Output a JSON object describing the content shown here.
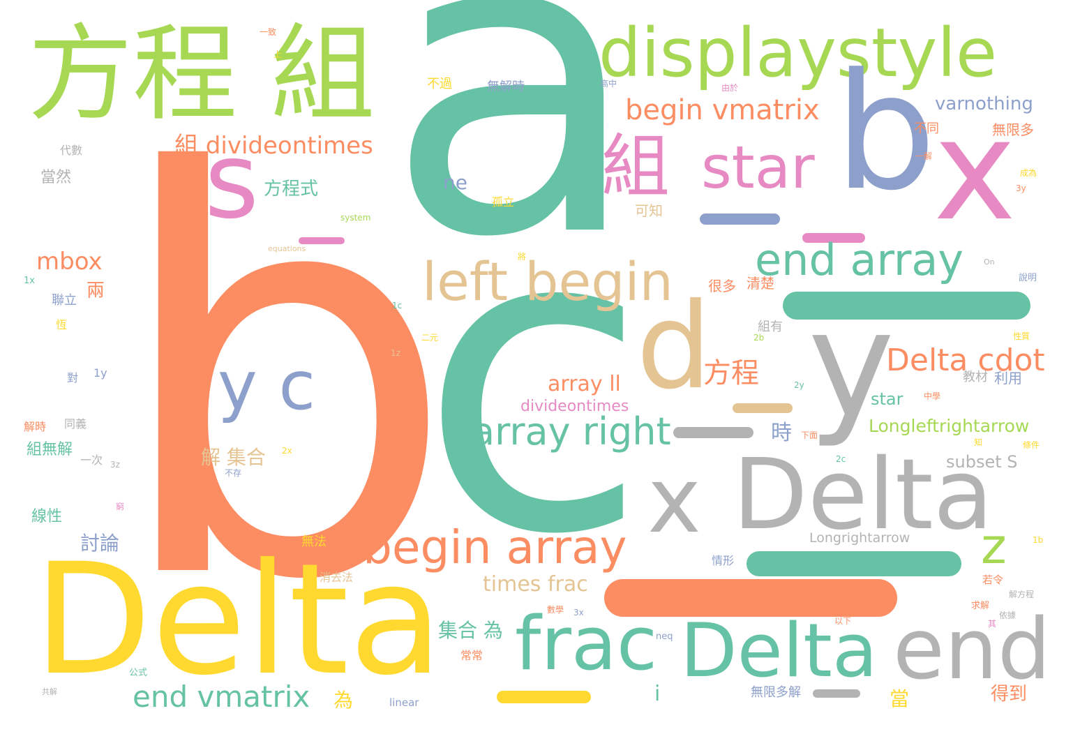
{
  "palette": {
    "teal": "#66c2a5",
    "orange": "#fc8d62",
    "blue": "#8da0cb",
    "pink": "#e78ac3",
    "lime": "#a6d854",
    "yellow": "#ffd92f",
    "tan": "#e5c494",
    "gray": "#b3b3b3"
  },
  "words": {
    "a": "a",
    "b": "b",
    "c": "c",
    "b2": "b",
    "x": "x",
    "s": "s",
    "d": "d",
    "y": "y",
    "z": "z",
    "delta_big": "Delta",
    "delta_gray": "Delta",
    "delta_teal": "Delta",
    "fangchengzu": "方程 組",
    "displaystyle": "displaystyle",
    "zu": "組",
    "star": "star",
    "begin_vmatrix": "begin vmatrix",
    "varnothing": "varnothing",
    "zu_divideontimes": "組 divideontimes",
    "fangchengshi": "方程式",
    "ne": "ne",
    "mbox": "mbox",
    "left_begin": "left begin",
    "end_array": "end array",
    "y_c": "y c",
    "array_right": "array right",
    "x2": "x",
    "end": "end",
    "delta_cdot": "Delta cdot",
    "fangcheng": "方程",
    "array_ll": "array ll",
    "star_small": "star",
    "divideontimes": "divideontimes",
    "longleftrightarrow": "Longleftrightarrow",
    "subset": "subset S",
    "begin_array": "begin array",
    "times_frac": "times frac",
    "frac": "frac",
    "end_vmatrix": "end vmatrix",
    "jie_jihe": "解 集合",
    "jihe_wei": "集合 為",
    "longrightarrow": "Longrightarrow",
    "shi": "時",
    "dedao": "得到",
    "dang": "當",
    "wei": "為",
    "i": "i",
    "liang": "兩",
    "taolun": "討論",
    "xianxing": "線性",
    "zuwujie": "組無解",
    "dangran": "當然",
    "lianli": "聯立",
    "daishu": "代數",
    "buguo": "不過",
    "wujieshi": "無解時",
    "butong": "不同",
    "wuxianduo": "無限多",
    "kezhi": "可知",
    "henduo": "很多",
    "qingchu": "清楚",
    "zuyou": "組有",
    "jiaocai": "教材",
    "liyong": "利用",
    "wuxianduojie": "無限多解",
    "xiaoqufa": "消去法",
    "guli": "孤立",
    "changchang": "常常",
    "wufa": "無法",
    "jijie": "即解",
    "yici": "一次",
    "tongyi": "同義",
    "jieshi": "解時",
    "dui": "對",
    "y1": "1y",
    "x1": "1x",
    "system": "system",
    "equations": "equations",
    "linear": "linear",
    "neq": "neq",
    "on": "On",
    "shuoming": "說明",
    "heng": "恆",
    "gongshi": "公式",
    "wuzhi": "不存",
    "x3": "3x",
    "x2b": "2x",
    "y2": "2y",
    "c1": "1c",
    "z1": "1z",
    "b2b": "2b",
    "c2": "2c",
    "z3": "3z",
    "y3": "3y",
    "b1": "1b",
    "erjie": "二元",
    "sanyuan": "三元",
    "jiang": "將",
    "yizhi": "一致",
    "zhongxue": "中學",
    "shuxue": "數學",
    "gaozhong": "高中",
    "youyu": "由於",
    "ruoling": "若令",
    "qiujie": "求解",
    "yijie": "一解",
    "gongjie": "共解",
    "qiong": "窮",
    "chengwei": "成為",
    "qi": "其",
    "shang": "上",
    "yibuwei": "一不為",
    "qingjing": "情形",
    "jiefangcheng": "解方程",
    "zhidao": "知",
    "tiaojian": "條件",
    "xiamian": "下面",
    "yixia": "以下",
    "yiju": "依據",
    "xingzhi": "性質"
  }
}
